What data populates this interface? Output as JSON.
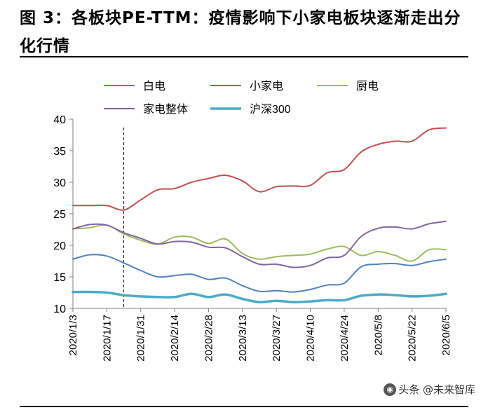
{
  "figure": {
    "title": "图 3：各板块PE-TTM：疫情影响下小家电板块逐渐走出分化行情",
    "watermark": "头条 @未来智库"
  },
  "chart_data": {
    "type": "line",
    "x": [
      "2020/1/3",
      "2020/1/10",
      "2020/1/17",
      "2020/1/24",
      "2020/1/31",
      "2020/2/7",
      "2020/2/14",
      "2020/2/21",
      "2020/2/28",
      "2020/3/6",
      "2020/3/13",
      "2020/3/20",
      "2020/3/27",
      "2020/4/3",
      "2020/4/10",
      "2020/4/17",
      "2020/4/24",
      "2020/5/1",
      "2020/5/8",
      "2020/5/15",
      "2020/5/22",
      "2020/5/29",
      "2020/6/5"
    ],
    "xticks": [
      "2020/1/3",
      "2020/1/17",
      "2020/1/31",
      "2020/2/14",
      "2020/2/28",
      "2020/3/13",
      "2020/3/27",
      "2020/4/10",
      "2020/4/24",
      "2020/5/8",
      "2020/5/22",
      "2020/6/5"
    ],
    "ylim": [
      10,
      40
    ],
    "yticks": [
      10,
      15,
      20,
      25,
      30,
      35,
      40
    ],
    "vline": "2020/1/24",
    "legend_position": "top",
    "series": [
      {
        "name": "白电",
        "color": "#4f81bd",
        "width": 2,
        "values": [
          17.8,
          18.5,
          18.3,
          17.2,
          16.0,
          15.0,
          15.2,
          15.4,
          14.6,
          14.8,
          13.6,
          12.7,
          12.8,
          12.6,
          13.0,
          13.7,
          14.0,
          16.6,
          17.0,
          17.1,
          16.8,
          17.4,
          17.8
        ]
      },
      {
        "name": "小家电",
        "color": "#c0504d",
        "width": 2,
        "values": [
          26.3,
          26.3,
          26.3,
          25.6,
          27.2,
          28.8,
          29.0,
          30.0,
          30.6,
          31.1,
          30.2,
          28.5,
          29.3,
          29.4,
          29.5,
          31.5,
          32.0,
          34.8,
          36.0,
          36.5,
          36.5,
          38.3,
          38.6
        ]
      },
      {
        "name": "厨电",
        "color": "#9bbb59",
        "width": 2,
        "values": [
          22.6,
          22.8,
          23.2,
          21.8,
          20.8,
          20.2,
          21.3,
          21.3,
          20.3,
          21.0,
          18.7,
          17.8,
          18.2,
          18.4,
          18.6,
          19.4,
          19.8,
          18.4,
          19.0,
          18.4,
          17.5,
          19.3,
          19.3
        ]
      },
      {
        "name": "家电整体",
        "color": "#8064a2",
        "width": 2,
        "values": [
          22.6,
          23.3,
          23.2,
          22.0,
          21.1,
          20.2,
          20.6,
          20.5,
          19.7,
          19.6,
          18.2,
          17.0,
          17.0,
          16.5,
          16.8,
          18.0,
          18.4,
          21.4,
          22.7,
          22.9,
          22.6,
          23.4,
          23.8
        ]
      },
      {
        "name": "沪深300",
        "color": "#4bacc6",
        "width": 3.5,
        "values": [
          12.6,
          12.6,
          12.5,
          12.1,
          11.9,
          11.8,
          11.8,
          12.3,
          11.8,
          12.2,
          11.5,
          11.0,
          11.2,
          11.0,
          11.1,
          11.3,
          11.3,
          12.0,
          12.2,
          12.1,
          11.9,
          12.0,
          12.3
        ]
      }
    ]
  }
}
